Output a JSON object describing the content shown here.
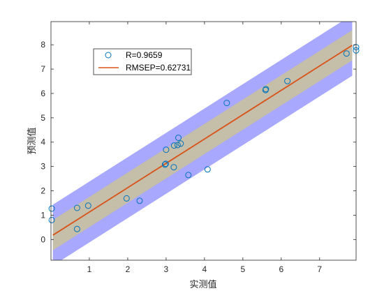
{
  "chart_data": {
    "type": "scatter",
    "xlabel": "实测值",
    "ylabel": "预测值",
    "xlim": [
      0,
      7.95
    ],
    "ylim": [
      -0.85,
      8.95
    ],
    "xticks": [
      1,
      2,
      3,
      4,
      5,
      6,
      7
    ],
    "yticks": [
      0,
      1,
      2,
      3,
      4,
      5,
      6,
      7,
      8
    ],
    "grid": false,
    "legend_position": "top-left",
    "legend": {
      "points_label": "R=0.9659",
      "line_label": "RMSEP=0.62731"
    },
    "fit_line": {
      "x": [
        0.05,
        7.85
      ],
      "y": [
        0.18,
        7.98
      ]
    },
    "bands": [
      {
        "half_width": 1.25,
        "color": "#9999ff"
      },
      {
        "half_width": 0.62,
        "color": "#c8c0a0"
      }
    ],
    "points": {
      "x": [
        0.02,
        0.02,
        0.68,
        0.68,
        0.97,
        1.97,
        2.31,
        2.97,
        2.99,
        3.0,
        3.2,
        3.21,
        3.3,
        3.32,
        3.38,
        3.58,
        4.08,
        4.58,
        5.59,
        5.6,
        6.16,
        7.7,
        7.95,
        7.95
      ],
      "y": [
        1.27,
        0.8,
        1.3,
        0.43,
        1.39,
        1.69,
        1.59,
        3.08,
        3.11,
        3.69,
        2.97,
        3.86,
        3.88,
        4.18,
        3.94,
        2.65,
        2.88,
        5.61,
        6.14,
        6.18,
        6.51,
        7.64,
        7.77,
        7.9
      ]
    },
    "colors": {
      "points": "#0072bd",
      "fit_line": "#d95319",
      "band_outer": "#9999ff",
      "band_inner": "#c8c0a0"
    }
  }
}
